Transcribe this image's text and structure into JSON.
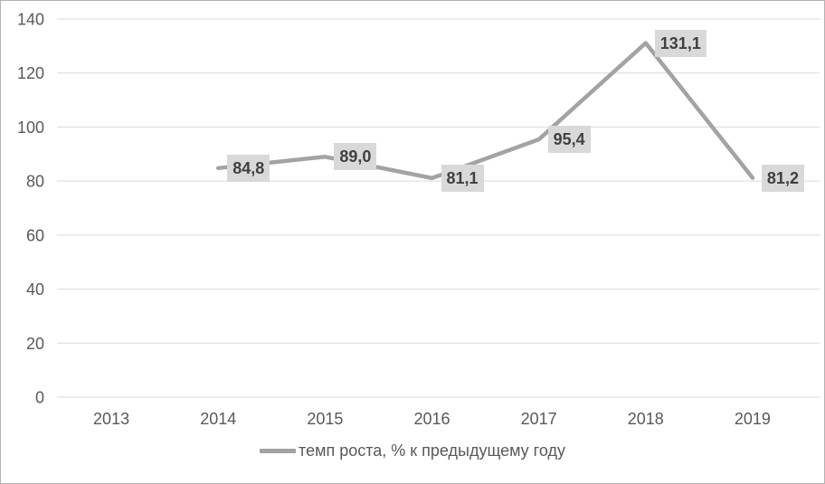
{
  "chart_data": {
    "type": "line",
    "title": "",
    "xlabel": "",
    "ylabel": "",
    "categories": [
      "2013",
      "2014",
      "2015",
      "2016",
      "2017",
      "2018",
      "2019"
    ],
    "series": [
      {
        "name": "темп роста, % к предыдущему году",
        "values": [
          null,
          84.8,
          89.0,
          81.1,
          95.4,
          131.1,
          81.2
        ],
        "point_labels": [
          null,
          "84,8",
          "89,0",
          "81,1",
          "95,4",
          "131,1",
          "81,2"
        ]
      }
    ],
    "ylim": [
      0,
      140
    ],
    "yticks": [
      0,
      20,
      40,
      60,
      80,
      100,
      120,
      140
    ],
    "grid": true,
    "legend_position": "bottom",
    "legend_label": "темп роста, % к предыдущему году",
    "colors": {
      "line": "#a3a3a3",
      "gridline": "#d9d9d9",
      "axis_text": "#595959",
      "data_label_text": "#404040",
      "data_label_bg": "#d9d9d9",
      "background": "#ffffff",
      "frame_border": "#b3b3b3"
    }
  }
}
